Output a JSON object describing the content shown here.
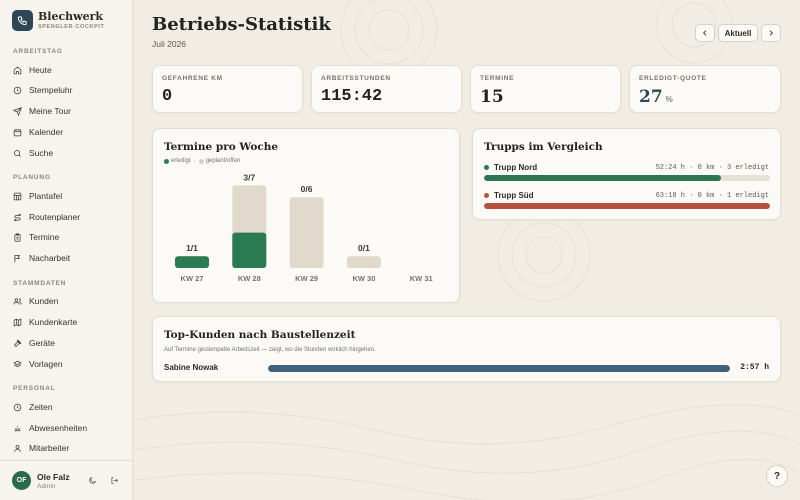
{
  "brand": {
    "name": "Blechwerk",
    "subtitle": "SPENGLER-COCKPIT"
  },
  "sidebar": {
    "sections": [
      {
        "title": "ARBEITSTAG",
        "items": [
          {
            "label": "Heute",
            "icon": "home-icon"
          },
          {
            "label": "Stempeluhr",
            "icon": "clock-icon"
          },
          {
            "label": "Meine Tour",
            "icon": "send-icon"
          },
          {
            "label": "Kalender",
            "icon": "calendar-icon"
          },
          {
            "label": "Suche",
            "icon": "search-icon"
          }
        ]
      },
      {
        "title": "PLANUNG",
        "items": [
          {
            "label": "Plantafel",
            "icon": "grid-icon"
          },
          {
            "label": "Routenplaner",
            "icon": "route-icon"
          },
          {
            "label": "Termine",
            "icon": "clipboard-icon"
          },
          {
            "label": "Nacharbeit",
            "icon": "flag-icon"
          }
        ]
      },
      {
        "title": "STAMMDATEN",
        "items": [
          {
            "label": "Kunden",
            "icon": "users-icon"
          },
          {
            "label": "Kundenkarte",
            "icon": "map-icon"
          },
          {
            "label": "Geräte",
            "icon": "hammer-icon"
          },
          {
            "label": "Vorlagen",
            "icon": "layers-icon"
          }
        ]
      },
      {
        "title": "PERSONAL",
        "items": [
          {
            "label": "Zeiten",
            "icon": "clock-icon"
          },
          {
            "label": "Abwesenheiten",
            "icon": "sun-icon"
          },
          {
            "label": "Mitarbeiter",
            "icon": "user-icon"
          }
        ]
      }
    ]
  },
  "user": {
    "initials": "OF",
    "name": "Ole Falz",
    "role": "Admin"
  },
  "header": {
    "title": "Betriebs-Statistik",
    "period": "Juli 2026",
    "today_label": "Aktuell"
  },
  "stats": [
    {
      "label": "GEFAHRENE KM",
      "value": "0",
      "unit": ""
    },
    {
      "label": "ARBEITSSTUNDEN",
      "value": "115:42",
      "unit": ""
    },
    {
      "label": "TERMINE",
      "value": "15",
      "unit": ""
    },
    {
      "label": "ERLEDIGT-QUOTE",
      "value": "27",
      "unit": "%"
    }
  ],
  "weekly": {
    "title": "Termine pro Woche",
    "legend_done": "erledigt",
    "legend_sep": "·",
    "legend_open": "geplant/offen"
  },
  "chart_data": {
    "type": "bar",
    "categories": [
      "KW 27",
      "KW 28",
      "KW 29",
      "KW 30",
      "KW 31"
    ],
    "series": [
      {
        "name": "erledigt",
        "values": [
          1,
          3,
          0,
          0,
          0
        ]
      },
      {
        "name": "geplant/offen",
        "values": [
          0,
          4,
          6,
          1,
          0
        ]
      }
    ],
    "data_labels": [
      "1/1",
      "3/7",
      "0/6",
      "0/1",
      ""
    ],
    "colors": {
      "done": "#2a7a52",
      "open": "#e0d9cc"
    }
  },
  "trupps": {
    "title": "Trupps im Vergleich",
    "items": [
      {
        "name": "Trupp Nord",
        "stats": "52:24 h · 0 km · 3 erledigt",
        "fraction": 0.83,
        "color": "#2e7552"
      },
      {
        "name": "Trupp Süd",
        "stats": "63:18 h · 0 km · 1 erledigt",
        "fraction": 1.0,
        "color": "#b4523e"
      }
    ]
  },
  "top_customers": {
    "title": "Top-Kunden nach Baustellenzeit",
    "subtitle": "Auf Termine gestempelte Arbeitszeit — zeigt, wo die Stunden wirklich hingehen.",
    "items": [
      {
        "name": "Sabine Nowak",
        "time": "2:57 h",
        "fraction": 1.0
      }
    ]
  },
  "help_label": "?"
}
